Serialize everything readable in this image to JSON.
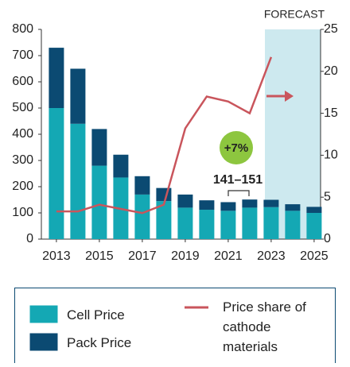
{
  "chart_data": {
    "type": "bar",
    "x": [
      2013,
      2014,
      2015,
      2016,
      2017,
      2018,
      2019,
      2020,
      2021,
      2022,
      2023,
      2024,
      2025
    ],
    "xlim": [
      2012.3,
      2025.3
    ],
    "xticks": [
      2013,
      2015,
      2017,
      2019,
      2021,
      2023,
      2025
    ],
    "ylim": [
      0,
      800
    ],
    "yticks": [
      0,
      100,
      200,
      300,
      400,
      500,
      600,
      700,
      800
    ],
    "y2lim": [
      0,
      25
    ],
    "y2ticks": [
      0,
      5,
      10,
      15,
      20,
      25
    ],
    "stacked": true,
    "series": [
      {
        "name": "Cell Price",
        "color": "#14a8b4",
        "values": [
          500,
          440,
          280,
          235,
          170,
          145,
          120,
          112,
          108,
          120,
          122,
          108,
          100
        ]
      },
      {
        "name": "Pack Price",
        "color": "#0b4a72",
        "values": [
          230,
          210,
          140,
          87,
          70,
          50,
          50,
          36,
          33,
          31,
          28,
          25,
          23
        ]
      },
      {
        "name": "Price share of cathode materials",
        "color": "#c9555c",
        "type": "line",
        "axis": "y2",
        "values": [
          3.3,
          3.3,
          4.1,
          3.6,
          3.1,
          4.1,
          13.2,
          17.0,
          16.4,
          15.0,
          21.7,
          null,
          null
        ]
      }
    ],
    "annotations": [
      "FORECAST",
      "+7%",
      "141–151"
    ]
  }
}
